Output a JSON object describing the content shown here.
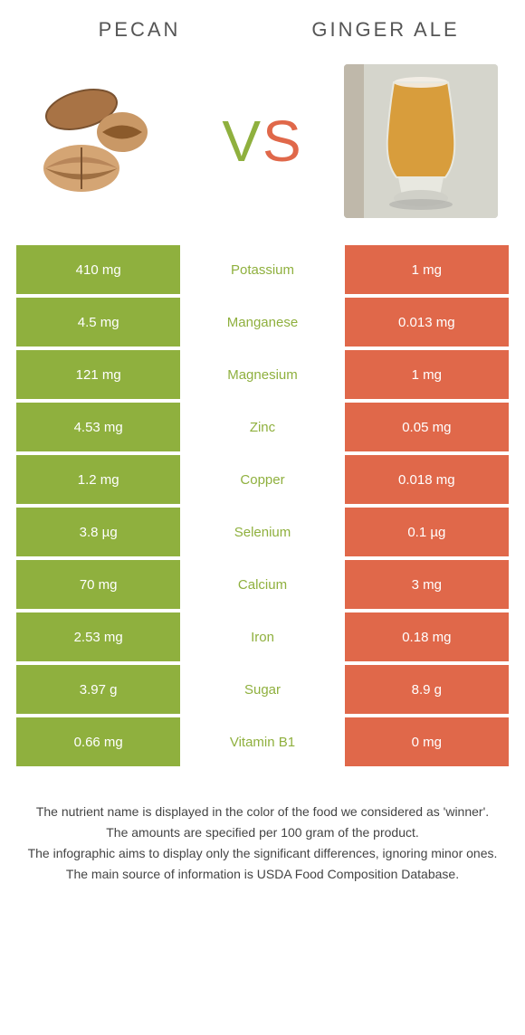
{
  "left_food": {
    "title": "Pecan"
  },
  "right_food": {
    "title": "Ginger ale"
  },
  "vs": {
    "v": "V",
    "s": "S"
  },
  "colors": {
    "left_bg": "#8fb03e",
    "right_bg": "#e0684a",
    "left_text": "#8fb03e",
    "right_text": "#e0684a",
    "row_gap": "#ffffff"
  },
  "table": {
    "rows": [
      {
        "left": "410 mg",
        "label": "Potassium",
        "right": "1 mg",
        "winner": "left"
      },
      {
        "left": "4.5 mg",
        "label": "Manganese",
        "right": "0.013 mg",
        "winner": "left"
      },
      {
        "left": "121 mg",
        "label": "Magnesium",
        "right": "1 mg",
        "winner": "left"
      },
      {
        "left": "4.53 mg",
        "label": "Zinc",
        "right": "0.05 mg",
        "winner": "left"
      },
      {
        "left": "1.2 mg",
        "label": "Copper",
        "right": "0.018 mg",
        "winner": "left"
      },
      {
        "left": "3.8 µg",
        "label": "Selenium",
        "right": "0.1 µg",
        "winner": "left"
      },
      {
        "left": "70 mg",
        "label": "Calcium",
        "right": "3 mg",
        "winner": "left"
      },
      {
        "left": "2.53 mg",
        "label": "Iron",
        "right": "0.18 mg",
        "winner": "left"
      },
      {
        "left": "3.97 g",
        "label": "Sugar",
        "right": "8.9 g",
        "winner": "left"
      },
      {
        "left": "0.66 mg",
        "label": "Vitamin B1",
        "right": "0 mg",
        "winner": "left"
      }
    ]
  },
  "footer": {
    "line1": "The nutrient name is displayed in the color of the food we considered as 'winner'.",
    "line2": "The amounts are specified per 100 gram of the product.",
    "line3": "The infographic aims to display only the significant differences, ignoring minor ones.",
    "line4": "The main source of information is USDA Food Composition Database."
  }
}
